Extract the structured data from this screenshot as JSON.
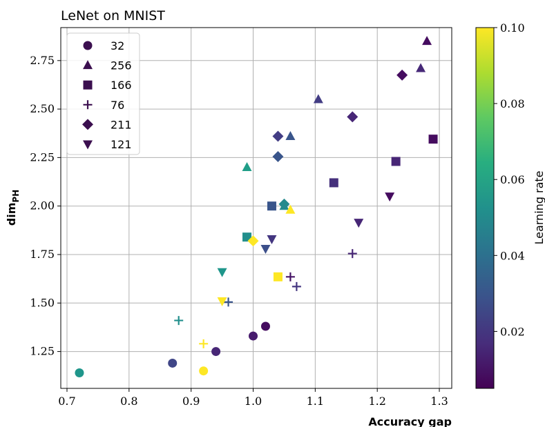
{
  "chart_data": {
    "type": "scatter",
    "title": "LeNet on MNIST",
    "xlabel": "Accuracy gap",
    "ylabel_main": "dim",
    "ylabel_sub": "PH",
    "xlim": [
      0.69,
      1.32
    ],
    "ylim": [
      1.06,
      2.92
    ],
    "x_ticks": [
      0.7,
      0.8,
      0.9,
      1.0,
      1.1,
      1.2,
      1.3
    ],
    "x_tick_labels": [
      "0.7",
      "0.8",
      "0.9",
      "1.0",
      "1.1",
      "1.2",
      "1.3"
    ],
    "y_ticks": [
      1.25,
      1.5,
      1.75,
      2.0,
      2.25,
      2.5,
      2.75
    ],
    "y_tick_labels": [
      "1.25",
      "1.50",
      "1.75",
      "2.00",
      "2.25",
      "2.50",
      "2.75"
    ],
    "grid": true,
    "legend_position": "upper-left",
    "colorbar": {
      "label": "Learning rate",
      "colormap": "viridis",
      "range": [
        0.005,
        0.1
      ],
      "ticks": [
        0.02,
        0.04,
        0.06,
        0.08,
        0.1
      ],
      "tick_labels": [
        "0.02",
        "0.04",
        "0.06",
        "0.08",
        "0.10"
      ]
    },
    "series": [
      {
        "name": "32",
        "marker": "circle",
        "points": [
          {
            "x": 0.72,
            "y": 1.14,
            "lr": 0.055
          },
          {
            "x": 0.87,
            "y": 1.19,
            "lr": 0.025
          },
          {
            "x": 0.92,
            "y": 1.15,
            "lr": 0.1
          },
          {
            "x": 0.94,
            "y": 1.25,
            "lr": 0.015
          },
          {
            "x": 1.0,
            "y": 1.33,
            "lr": 0.012
          },
          {
            "x": 1.02,
            "y": 1.38,
            "lr": 0.008
          }
        ]
      },
      {
        "name": "256",
        "marker": "triangle-up",
        "points": [
          {
            "x": 0.99,
            "y": 2.2,
            "lr": 0.058
          },
          {
            "x": 1.05,
            "y": 2.0,
            "lr": 0.05
          },
          {
            "x": 1.06,
            "y": 2.36,
            "lr": 0.03
          },
          {
            "x": 1.06,
            "y": 1.98,
            "lr": 0.1
          },
          {
            "x": 1.105,
            "y": 2.55,
            "lr": 0.022
          },
          {
            "x": 1.27,
            "y": 2.71,
            "lr": 0.016
          },
          {
            "x": 1.28,
            "y": 2.85,
            "lr": 0.008
          }
        ]
      },
      {
        "name": "166",
        "marker": "square",
        "points": [
          {
            "x": 0.99,
            "y": 1.84,
            "lr": 0.052
          },
          {
            "x": 1.03,
            "y": 2.0,
            "lr": 0.03
          },
          {
            "x": 1.04,
            "y": 1.635,
            "lr": 0.1
          },
          {
            "x": 1.13,
            "y": 2.12,
            "lr": 0.018
          },
          {
            "x": 1.23,
            "y": 2.23,
            "lr": 0.015
          },
          {
            "x": 1.29,
            "y": 2.345,
            "lr": 0.008
          }
        ]
      },
      {
        "name": "76",
        "marker": "plus",
        "points": [
          {
            "x": 0.88,
            "y": 1.41,
            "lr": 0.052
          },
          {
            "x": 0.92,
            "y": 1.29,
            "lr": 0.1
          },
          {
            "x": 0.96,
            "y": 1.505,
            "lr": 0.03
          },
          {
            "x": 1.06,
            "y": 1.635,
            "lr": 0.01
          },
          {
            "x": 1.07,
            "y": 1.585,
            "lr": 0.02
          },
          {
            "x": 1.16,
            "y": 1.755,
            "lr": 0.015
          }
        ]
      },
      {
        "name": "211",
        "marker": "diamond",
        "points": [
          {
            "x": 1.0,
            "y": 1.82,
            "lr": 0.1
          },
          {
            "x": 1.04,
            "y": 2.36,
            "lr": 0.022
          },
          {
            "x": 1.04,
            "y": 2.255,
            "lr": 0.03
          },
          {
            "x": 1.05,
            "y": 2.01,
            "lr": 0.05
          },
          {
            "x": 1.16,
            "y": 2.46,
            "lr": 0.015
          },
          {
            "x": 1.24,
            "y": 2.675,
            "lr": 0.008
          }
        ]
      },
      {
        "name": "121",
        "marker": "triangle-down",
        "points": [
          {
            "x": 0.95,
            "y": 1.66,
            "lr": 0.055
          },
          {
            "x": 0.95,
            "y": 1.51,
            "lr": 0.1
          },
          {
            "x": 1.02,
            "y": 1.78,
            "lr": 0.028
          },
          {
            "x": 1.03,
            "y": 1.83,
            "lr": 0.02
          },
          {
            "x": 1.17,
            "y": 1.915,
            "lr": 0.015
          },
          {
            "x": 1.22,
            "y": 2.05,
            "lr": 0.008
          }
        ]
      }
    ]
  }
}
